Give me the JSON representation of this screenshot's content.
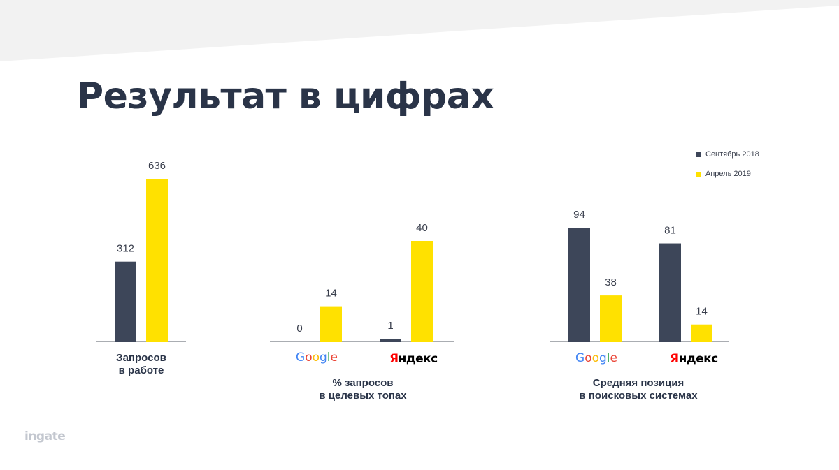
{
  "title": "Результат в цифрах",
  "colors": {
    "sep2018": "#3d4659",
    "apr2019": "#ffe100",
    "title": "#2a3448",
    "axis": "#555b66",
    "banner": "#f2f2f2",
    "google_letters": [
      "#4285f4",
      "#ea4335",
      "#fbbc05",
      "#4285f4",
      "#34a853",
      "#ea4335"
    ],
    "yandex_first": "#ff0000",
    "yandex_rest": "#000000"
  },
  "legend": [
    {
      "label": "Сентябрь 2018",
      "color": "#3d4659"
    },
    {
      "label": "Апрель 2019",
      "color": "#ffe100"
    }
  ],
  "logos": {
    "google": "Google",
    "yandex_first": "Я",
    "yandex_rest": "ндекс",
    "ingate": "ingate"
  },
  "chart_data": [
    {
      "type": "bar",
      "categories": [
        ""
      ],
      "series": [
        {
          "name": "Сентябрь 2018",
          "values": [
            312
          ]
        },
        {
          "name": "Апрель 2019",
          "values": [
            636
          ]
        }
      ],
      "caption": [
        "Запросов",
        "в работе"
      ]
    },
    {
      "type": "bar",
      "categories": [
        "Google",
        "Яндекс"
      ],
      "series": [
        {
          "name": "Сентябрь 2018",
          "values": [
            0,
            1
          ]
        },
        {
          "name": "Апрель 2019",
          "values": [
            14,
            40
          ]
        }
      ],
      "caption": [
        "% запросов",
        "в целевых топах"
      ]
    },
    {
      "type": "bar",
      "categories": [
        "Google",
        "Яндекс"
      ],
      "series": [
        {
          "name": "Сентябрь 2018",
          "values": [
            94,
            81
          ]
        },
        {
          "name": "Апрель 2019",
          "values": [
            38,
            14
          ]
        }
      ],
      "caption": [
        "Средняя позиция",
        "в поисковых системах"
      ]
    }
  ]
}
